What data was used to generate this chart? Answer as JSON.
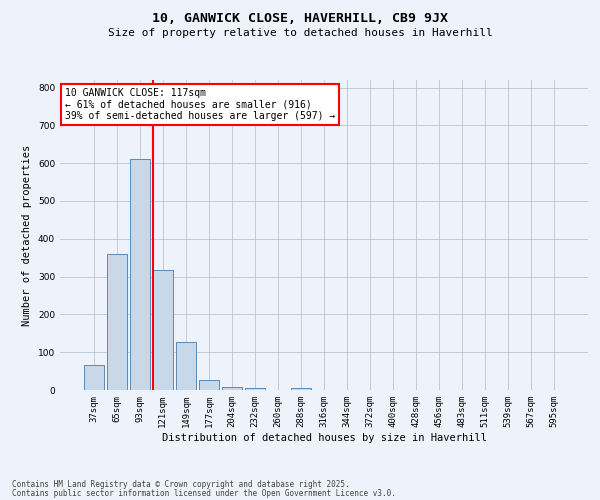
{
  "title1": "10, GANWICK CLOSE, HAVERHILL, CB9 9JX",
  "title2": "Size of property relative to detached houses in Haverhill",
  "xlabel": "Distribution of detached houses by size in Haverhill",
  "ylabel": "Number of detached properties",
  "categories": [
    "37sqm",
    "65sqm",
    "93sqm",
    "121sqm",
    "149sqm",
    "177sqm",
    "204sqm",
    "232sqm",
    "260sqm",
    "288sqm",
    "316sqm",
    "344sqm",
    "372sqm",
    "400sqm",
    "428sqm",
    "456sqm",
    "483sqm",
    "511sqm",
    "539sqm",
    "567sqm",
    "595sqm"
  ],
  "values": [
    65,
    360,
    610,
    318,
    127,
    27,
    9,
    4,
    0,
    5,
    0,
    0,
    0,
    0,
    0,
    0,
    0,
    0,
    0,
    0,
    0
  ],
  "bar_color": "#c8d8e8",
  "bar_edge_color": "#5a8ab8",
  "vline_color": "red",
  "annotation_text": "10 GANWICK CLOSE: 117sqm\n← 61% of detached houses are smaller (916)\n39% of semi-detached houses are larger (597) →",
  "annotation_box_color": "white",
  "annotation_box_edge": "red",
  "footnote1": "Contains HM Land Registry data © Crown copyright and database right 2025.",
  "footnote2": "Contains public sector information licensed under the Open Government Licence v3.0.",
  "bg_color": "#eef2fa",
  "ylim": [
    0,
    820
  ],
  "grid_color": "#b0bece",
  "title1_fontsize": 9.5,
  "title2_fontsize": 8,
  "ylabel_fontsize": 7.5,
  "xlabel_fontsize": 7.5,
  "tick_fontsize": 6.5,
  "annot_fontsize": 7,
  "footnote_fontsize": 5.5
}
